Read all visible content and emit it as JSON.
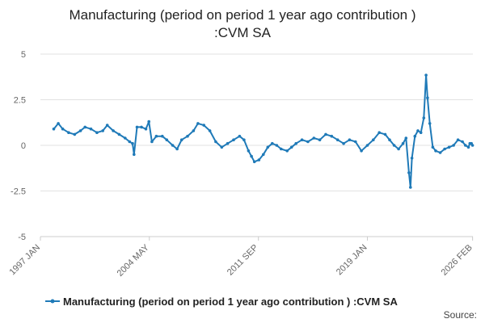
{
  "chart_data": {
    "type": "line",
    "title_line1": "Manufacturing (period on period 1 year ago contribution )",
    "title_line2": ":CVM SA",
    "ylim": [
      -5,
      5
    ],
    "y_ticks": [
      {
        "value": 5,
        "label": "5"
      },
      {
        "value": 2.5,
        "label": "2.5"
      },
      {
        "value": 0,
        "label": "0"
      },
      {
        "value": -2.5,
        "label": "-2.5"
      },
      {
        "value": -5,
        "label": "-5"
      }
    ],
    "xlim": [
      1997.0,
      2026.1
    ],
    "x_ticks": [
      {
        "value": 1997.0,
        "label": "1997 JAN"
      },
      {
        "value": 2004.33,
        "label": "2004 MAY"
      },
      {
        "value": 2011.67,
        "label": "2011 SEP"
      },
      {
        "value": 2019.0,
        "label": "2019 JAN"
      },
      {
        "value": 2026.08,
        "label": "2026 FEB"
      }
    ],
    "grid": true,
    "legend_position": "bottom",
    "series": [
      {
        "name": "Manufacturing (period on period 1 year ago contribution ) :CVM SA",
        "color": "#1f7ab8",
        "points": [
          [
            1997.9,
            0.9
          ],
          [
            1998.2,
            1.2
          ],
          [
            1998.5,
            0.9
          ],
          [
            1998.9,
            0.7
          ],
          [
            1999.3,
            0.6
          ],
          [
            1999.7,
            0.8
          ],
          [
            2000.0,
            1.0
          ],
          [
            2000.4,
            0.9
          ],
          [
            2000.8,
            0.7
          ],
          [
            2001.2,
            0.8
          ],
          [
            2001.5,
            1.1
          ],
          [
            2001.9,
            0.8
          ],
          [
            2002.3,
            0.6
          ],
          [
            2002.7,
            0.4
          ],
          [
            2003.0,
            0.2
          ],
          [
            2003.2,
            0.1
          ],
          [
            2003.3,
            -0.5
          ],
          [
            2003.5,
            1.0
          ],
          [
            2003.8,
            1.0
          ],
          [
            2004.1,
            0.9
          ],
          [
            2004.3,
            1.3
          ],
          [
            2004.5,
            0.2
          ],
          [
            2004.8,
            0.5
          ],
          [
            2005.2,
            0.5
          ],
          [
            2005.5,
            0.3
          ],
          [
            2005.9,
            0.0
          ],
          [
            2006.2,
            -0.2
          ],
          [
            2006.5,
            0.3
          ],
          [
            2006.9,
            0.5
          ],
          [
            2007.3,
            0.8
          ],
          [
            2007.6,
            1.2
          ],
          [
            2008.0,
            1.1
          ],
          [
            2008.4,
            0.8
          ],
          [
            2008.8,
            0.2
          ],
          [
            2009.2,
            -0.1
          ],
          [
            2009.6,
            0.1
          ],
          [
            2010.0,
            0.3
          ],
          [
            2010.4,
            0.5
          ],
          [
            2010.7,
            0.3
          ],
          [
            2011.0,
            -0.3
          ],
          [
            2011.2,
            -0.6
          ],
          [
            2011.4,
            -0.9
          ],
          [
            2011.7,
            -0.8
          ],
          [
            2012.0,
            -0.5
          ],
          [
            2012.3,
            -0.1
          ],
          [
            2012.6,
            0.1
          ],
          [
            2012.9,
            0.0
          ],
          [
            2013.2,
            -0.2
          ],
          [
            2013.6,
            -0.3
          ],
          [
            2013.9,
            -0.1
          ],
          [
            2014.2,
            0.1
          ],
          [
            2014.6,
            0.3
          ],
          [
            2015.0,
            0.2
          ],
          [
            2015.4,
            0.4
          ],
          [
            2015.8,
            0.3
          ],
          [
            2016.2,
            0.6
          ],
          [
            2016.6,
            0.5
          ],
          [
            2017.0,
            0.3
          ],
          [
            2017.4,
            0.1
          ],
          [
            2017.8,
            0.3
          ],
          [
            2018.2,
            0.2
          ],
          [
            2018.6,
            -0.3
          ],
          [
            2019.0,
            0.0
          ],
          [
            2019.4,
            0.3
          ],
          [
            2019.8,
            0.7
          ],
          [
            2020.2,
            0.6
          ],
          [
            2020.5,
            0.3
          ],
          [
            2020.8,
            0.0
          ],
          [
            2021.1,
            -0.2
          ],
          [
            2021.4,
            0.1
          ],
          [
            2021.6,
            0.4
          ],
          [
            2021.8,
            -1.5
          ],
          [
            2021.9,
            -2.3
          ],
          [
            2022.0,
            -0.7
          ],
          [
            2022.2,
            0.5
          ],
          [
            2022.4,
            0.8
          ],
          [
            2022.6,
            0.7
          ],
          [
            2022.8,
            1.5
          ],
          [
            2022.95,
            3.85
          ],
          [
            2023.05,
            2.6
          ],
          [
            2023.2,
            1.2
          ],
          [
            2023.4,
            -0.1
          ],
          [
            2023.6,
            -0.3
          ],
          [
            2023.9,
            -0.4
          ],
          [
            2024.2,
            -0.2
          ],
          [
            2024.5,
            -0.1
          ],
          [
            2024.8,
            0.0
          ],
          [
            2025.1,
            0.3
          ],
          [
            2025.4,
            0.2
          ],
          [
            2025.6,
            0.0
          ],
          [
            2025.8,
            -0.1
          ],
          [
            2025.9,
            0.1
          ],
          [
            2026.0,
            0.1
          ],
          [
            2026.08,
            0.0
          ]
        ]
      }
    ],
    "source_label": "Source:"
  }
}
